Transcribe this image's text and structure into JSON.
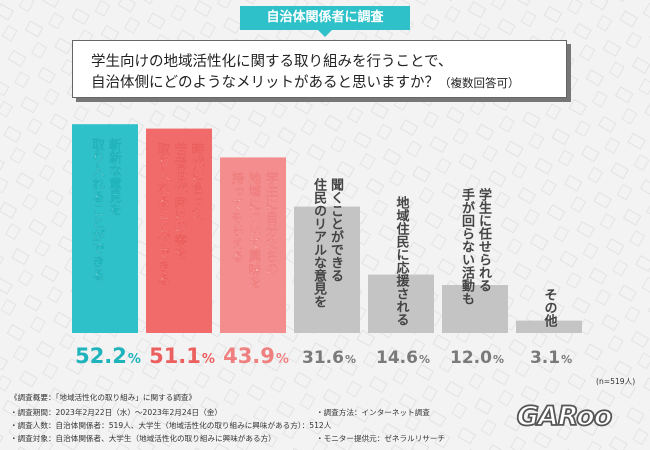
{
  "header_tag": "自治体関係者に調査",
  "question": {
    "line1": "学生向けの地域活性化に関する取り組みを行うことで、",
    "line2": "自治体側にどのようなメリットがあると思いますか？",
    "note": "（複数回答可）"
  },
  "chart_data": {
    "type": "bar",
    "title": "学生向けの地域活性化に関する取り組みを行うことで、自治体側にどのようなメリットがあると思いますか？（複数回答可）",
    "categories": [
      "斬新な意見を取り入れることができる",
      "時代に合った若者世代向けの案を取り入れることができる",
      "学生に自分たちの地域について興味を持ってもらえる",
      "住民のリアルな意見を聞くことができる",
      "地域住民に応援される",
      "手が回らない活動も学生に任せられる",
      "その他"
    ],
    "label_lines": [
      [
        "取り入れることができる",
        "斬新な意見を"
      ],
      [
        "取り入れることができる",
        "若者世代向けの案を",
        "時代に合った"
      ],
      [
        "持ってもらえる",
        "地域について興味を",
        "学生に自分たちの"
      ],
      [
        "住民のリアルな意見を",
        "聞くことができる"
      ],
      [
        "地域住民に応援される"
      ],
      [
        "手が回らない活動も",
        "学生に任せられる"
      ],
      [
        "その他"
      ]
    ],
    "values": [
      52.2,
      51.1,
      43.9,
      31.6,
      14.6,
      12.0,
      3.1
    ],
    "value_labels": [
      "52.2",
      "51.1",
      "43.9",
      "31.6",
      "14.6",
      "12.0",
      "3.1"
    ],
    "unit": "%",
    "colors": [
      "#2ec1c9",
      "#f26b6b",
      "#f48e8e",
      "#c4c4c4",
      "#c4c4c4",
      "#c4c4c4",
      "#c4c4c4"
    ],
    "value_colors": [
      "#1fb3bb",
      "#ec5f5f",
      "#f07f7f",
      "#7a7a7a",
      "#7a7a7a",
      "#7a7a7a",
      "#7a7a7a"
    ],
    "ylim": [
      0,
      60
    ],
    "sample_note": "(n=519人)"
  },
  "survey": {
    "heading": "《調査概要：「地域活性化の取り組み」に関する調査》",
    "period": "・調査期間：2023年2月22日（水）〜2023年2月24日（金）",
    "method": "・調査方法：インターネット調査",
    "count": "・調査人数：自治体関係者：519人、大学生（地域活性化の取り組みに興味がある方）：512人",
    "target": "・調査対象：自治体関係者、大学生（地域活性化の取り組みに興味がある方）",
    "provider": "・モニター提供元：ゼネラルリサーチ"
  },
  "logo_text": "GARoo"
}
